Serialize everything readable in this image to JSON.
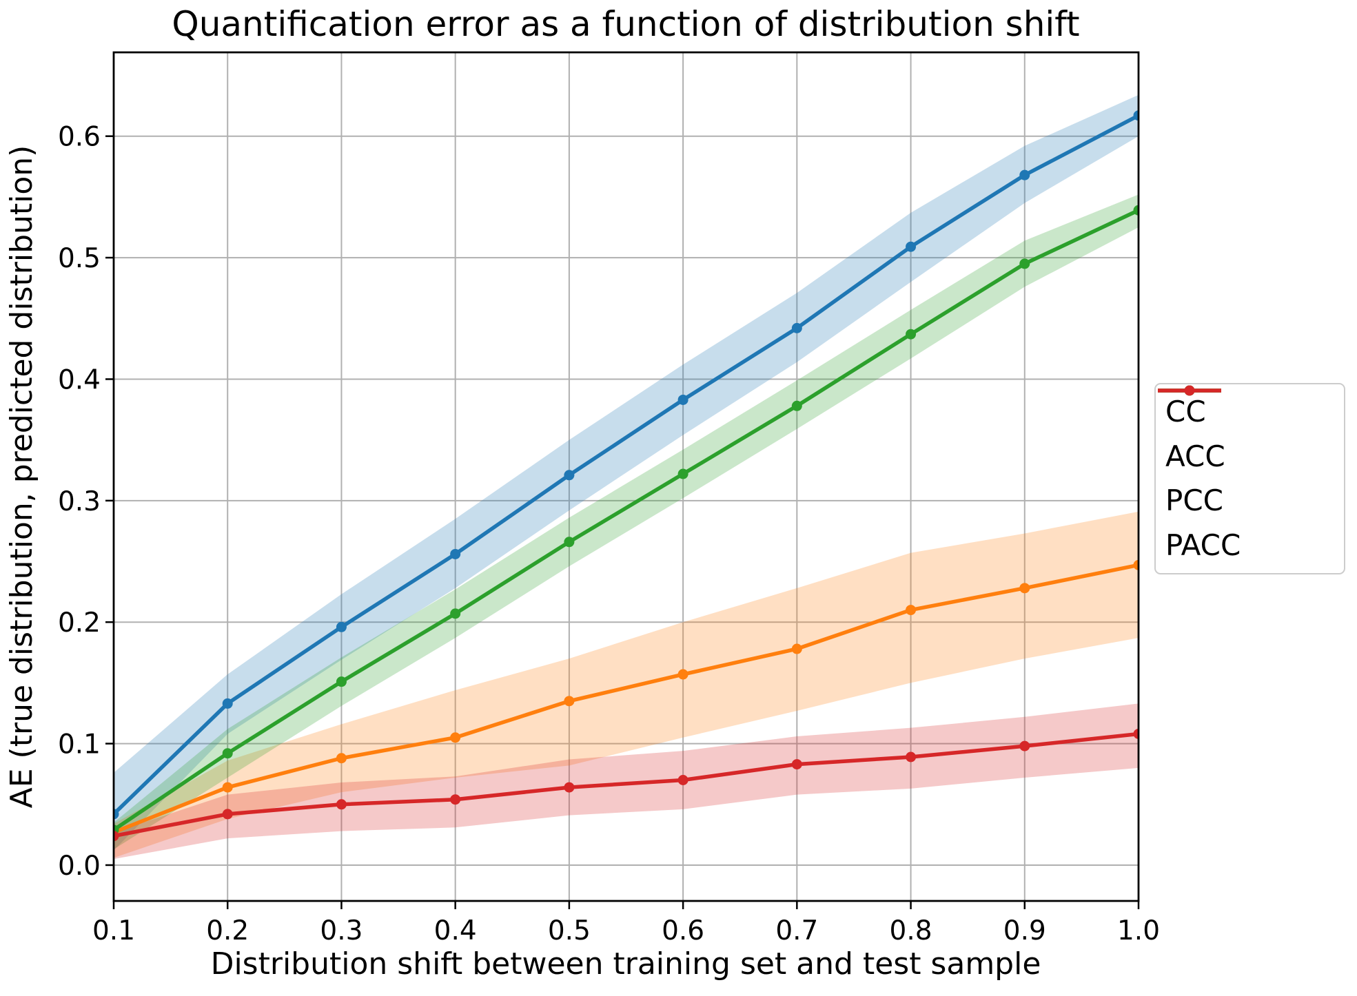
{
  "figure": {
    "background": "#ffffff"
  },
  "chart_data": {
    "type": "line",
    "title": "Quantification error as a function of distribution shift",
    "xlabel": "Distribution shift between training set and test sample",
    "ylabel": "AE (true distribution, predicted distribution)",
    "x": [
      0.1,
      0.2,
      0.3,
      0.4,
      0.5,
      0.6,
      0.7,
      0.8,
      0.9,
      1.0
    ],
    "x_tick_labels": [
      "0.1",
      "0.2",
      "0.3",
      "0.4",
      "0.5",
      "0.6",
      "0.7",
      "0.8",
      "0.9",
      "1.0"
    ],
    "y_tick_labels": [
      "0.0",
      "0.1",
      "0.2",
      "0.3",
      "0.4",
      "0.5",
      "0.6"
    ],
    "y_tick_values": [
      0.0,
      0.1,
      0.2,
      0.3,
      0.4,
      0.5,
      0.6
    ],
    "xlim": [
      0.1,
      1.0
    ],
    "ylim": [
      -0.0295,
      0.669
    ],
    "grid": true,
    "grid_color": "#b0b0b0",
    "band_opacity": 0.25,
    "legend_position": "right-outside",
    "series": [
      {
        "name": "CC",
        "color": "#1f77b4",
        "values": [
          0.042,
          0.133,
          0.196,
          0.256,
          0.321,
          0.383,
          0.442,
          0.509,
          0.568,
          0.617
        ],
        "band_low": [
          0.012,
          0.108,
          0.169,
          0.228,
          0.292,
          0.354,
          0.414,
          0.48,
          0.545,
          0.6
        ],
        "band_high": [
          0.076,
          0.157,
          0.223,
          0.285,
          0.35,
          0.412,
          0.471,
          0.537,
          0.592,
          0.634
        ]
      },
      {
        "name": "ACC",
        "color": "#ff7f0e",
        "values": [
          0.027,
          0.064,
          0.088,
          0.105,
          0.135,
          0.157,
          0.178,
          0.21,
          0.228,
          0.247
        ],
        "band_low": [
          0.006,
          0.038,
          0.06,
          0.072,
          0.082,
          0.105,
          0.127,
          0.15,
          0.17,
          0.187
        ],
        "band_high": [
          0.034,
          0.086,
          0.116,
          0.144,
          0.17,
          0.2,
          0.228,
          0.257,
          0.273,
          0.291
        ]
      },
      {
        "name": "PCC",
        "color": "#2ca02c",
        "values": [
          0.029,
          0.092,
          0.151,
          0.207,
          0.266,
          0.322,
          0.378,
          0.437,
          0.495,
          0.539
        ],
        "band_low": [
          0.013,
          0.072,
          0.131,
          0.187,
          0.246,
          0.302,
          0.359,
          0.417,
          0.476,
          0.525
        ],
        "band_high": [
          0.035,
          0.112,
          0.171,
          0.227,
          0.286,
          0.342,
          0.399,
          0.457,
          0.514,
          0.552
        ]
      },
      {
        "name": "PACC",
        "color": "#d62728",
        "values": [
          0.024,
          0.042,
          0.05,
          0.054,
          0.064,
          0.07,
          0.083,
          0.089,
          0.098,
          0.108
        ],
        "band_low": [
          0.005,
          0.022,
          0.028,
          0.031,
          0.041,
          0.046,
          0.058,
          0.063,
          0.072,
          0.08
        ],
        "band_high": [
          0.027,
          0.058,
          0.068,
          0.073,
          0.087,
          0.094,
          0.106,
          0.113,
          0.122,
          0.133
        ]
      }
    ]
  }
}
